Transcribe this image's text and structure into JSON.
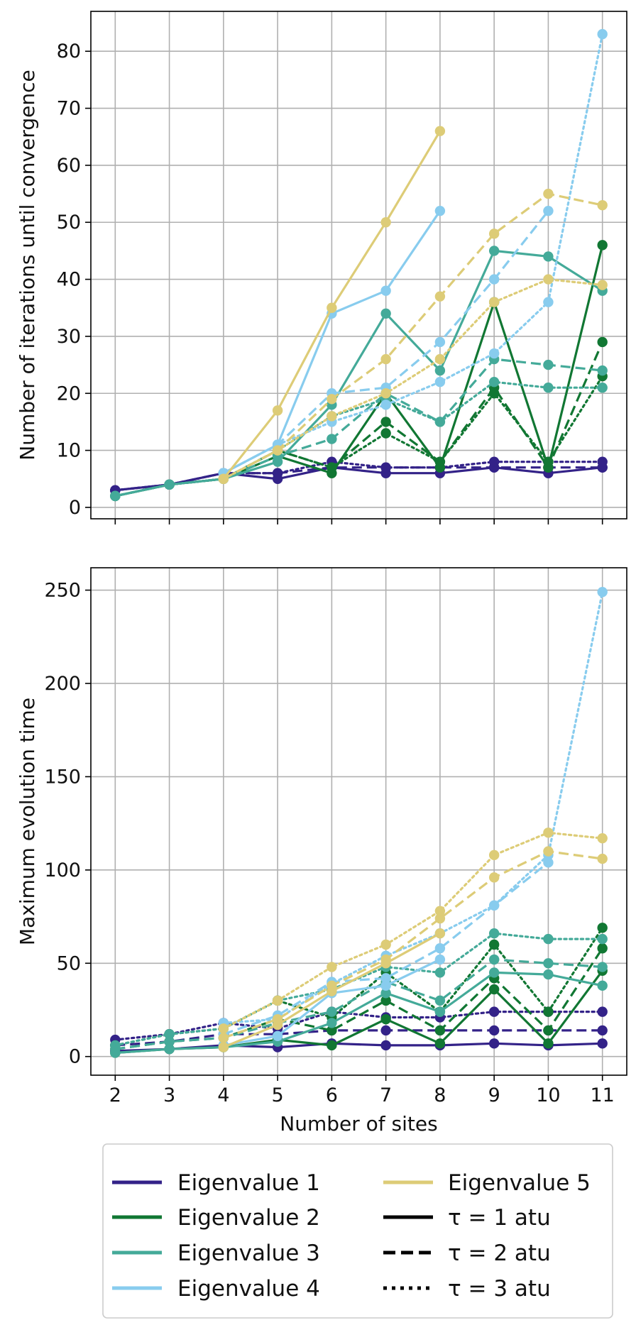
{
  "colors": {
    "Eigenvalue 1": "#332288",
    "Eigenvalue 2": "#117733",
    "Eigenvalue 3": "#44AA99",
    "Eigenvalue 4": "#88CCEE",
    "Eigenvalue 5": "#DDCC77"
  },
  "chart_data": [
    {
      "type": "line",
      "title": "",
      "xlabel": "",
      "ylabel": "Number of iterations until convergence",
      "x": [
        2,
        3,
        4,
        5,
        6,
        7,
        8,
        9,
        10,
        11
      ],
      "xlim": [
        1.55,
        11.45
      ],
      "ylim": [
        -2,
        87
      ],
      "yticks": [
        0,
        10,
        20,
        30,
        40,
        50,
        60,
        70,
        80
      ],
      "grid": true,
      "series": [
        {
          "name": "Eigenvalue 1",
          "tau": 1,
          "values": [
            3,
            4,
            6,
            5,
            7,
            6,
            6,
            7,
            6,
            7
          ]
        },
        {
          "name": "Eigenvalue 1",
          "tau": 2,
          "values": [
            3,
            4,
            6,
            6,
            7,
            7,
            7,
            7,
            7,
            7
          ]
        },
        {
          "name": "Eigenvalue 1",
          "tau": 3,
          "values": [
            3,
            4,
            6,
            6,
            8,
            7,
            7,
            8,
            8,
            8
          ]
        },
        {
          "name": "Eigenvalue 2",
          "tau": 1,
          "values": [
            2,
            4,
            5,
            9,
            6,
            20,
            7,
            36,
            7,
            46
          ]
        },
        {
          "name": "Eigenvalue 2",
          "tau": 2,
          "values": [
            2,
            4,
            5,
            10,
            7,
            15,
            8,
            21,
            7,
            29
          ]
        },
        {
          "name": "Eigenvalue 2",
          "tau": 3,
          "values": [
            2,
            4,
            5,
            10,
            7,
            13,
            8,
            20,
            8,
            23
          ]
        },
        {
          "name": "Eigenvalue 3",
          "tau": 1,
          "values": [
            2,
            4,
            5,
            8,
            18,
            34,
            24,
            45,
            44,
            38
          ]
        },
        {
          "name": "Eigenvalue 3",
          "tau": 2,
          "values": [
            2,
            4,
            5,
            9,
            12,
            20,
            15,
            26,
            25,
            24
          ]
        },
        {
          "name": "Eigenvalue 3",
          "tau": 3,
          "values": [
            2,
            4,
            5,
            10,
            16,
            19,
            15,
            22,
            21,
            21
          ]
        },
        {
          "name": "Eigenvalue 4",
          "tau": 1,
          "values": [
            null,
            null,
            6,
            11,
            34,
            38,
            52,
            null,
            null,
            null
          ]
        },
        {
          "name": "Eigenvalue 4",
          "tau": 2,
          "values": [
            null,
            null,
            6,
            11,
            20,
            21,
            29,
            40,
            52,
            null
          ]
        },
        {
          "name": "Eigenvalue 4",
          "tau": 3,
          "values": [
            null,
            null,
            6,
            11,
            15,
            18,
            22,
            27,
            36,
            83
          ]
        },
        {
          "name": "Eigenvalue 5",
          "tau": 1,
          "values": [
            null,
            null,
            5,
            17,
            35,
            50,
            66,
            null,
            null,
            null
          ]
        },
        {
          "name": "Eigenvalue 5",
          "tau": 2,
          "values": [
            null,
            null,
            5,
            10,
            19,
            26,
            37,
            48,
            55,
            53
          ]
        },
        {
          "name": "Eigenvalue 5",
          "tau": 3,
          "values": [
            null,
            null,
            5,
            10,
            16,
            20,
            26,
            36,
            40,
            39
          ]
        }
      ]
    },
    {
      "type": "line",
      "title": "",
      "xlabel": "Number of sites",
      "ylabel": "Maximum evolution time",
      "x": [
        2,
        3,
        4,
        5,
        6,
        7,
        8,
        9,
        10,
        11
      ],
      "xtick_labels": [
        "2",
        "3",
        "4",
        "5",
        "6",
        "7",
        "8",
        "9",
        "10",
        "11"
      ],
      "xlim": [
        1.55,
        11.45
      ],
      "ylim": [
        -10,
        262
      ],
      "yticks": [
        0,
        50,
        100,
        150,
        200,
        250
      ],
      "grid": true,
      "series": [
        {
          "name": "Eigenvalue 1",
          "tau": 1,
          "values": [
            3,
            4,
            6,
            5,
            7,
            6,
            6,
            7,
            6,
            7
          ]
        },
        {
          "name": "Eigenvalue 1",
          "tau": 2,
          "values": [
            6,
            8,
            12,
            12,
            14,
            14,
            14,
            14,
            14,
            14
          ]
        },
        {
          "name": "Eigenvalue 1",
          "tau": 3,
          "values": [
            9,
            12,
            18,
            15,
            24,
            21,
            21,
            24,
            24,
            24
          ]
        },
        {
          "name": "Eigenvalue 2",
          "tau": 1,
          "values": [
            2,
            4,
            5,
            9,
            6,
            20,
            7,
            36,
            7,
            46
          ]
        },
        {
          "name": "Eigenvalue 2",
          "tau": 2,
          "values": [
            4,
            8,
            10,
            20,
            14,
            30,
            14,
            42,
            14,
            58
          ]
        },
        {
          "name": "Eigenvalue 2",
          "tau": 3,
          "values": [
            6,
            12,
            15,
            30,
            21,
            45,
            24,
            60,
            24,
            69
          ]
        },
        {
          "name": "Eigenvalue 3",
          "tau": 1,
          "values": [
            2,
            4,
            5,
            8,
            18,
            34,
            24,
            45,
            44,
            38
          ]
        },
        {
          "name": "Eigenvalue 3",
          "tau": 2,
          "values": [
            4,
            8,
            10,
            18,
            24,
            40,
            30,
            52,
            50,
            48
          ]
        },
        {
          "name": "Eigenvalue 3",
          "tau": 3,
          "values": [
            6,
            12,
            15,
            30,
            36,
            48,
            45,
            66,
            63,
            63
          ]
        },
        {
          "name": "Eigenvalue 4",
          "tau": 1,
          "values": [
            null,
            null,
            6,
            11,
            34,
            38,
            52,
            null,
            null,
            null
          ]
        },
        {
          "name": "Eigenvalue 4",
          "tau": 2,
          "values": [
            null,
            null,
            12,
            22,
            40,
            42,
            58,
            81,
            104,
            null
          ]
        },
        {
          "name": "Eigenvalue 4",
          "tau": 3,
          "values": [
            null,
            null,
            18,
            20,
            39,
            54,
            66,
            81,
            108,
            249
          ]
        },
        {
          "name": "Eigenvalue 5",
          "tau": 1,
          "values": [
            null,
            null,
            5,
            17,
            35,
            50,
            66,
            null,
            null,
            null
          ]
        },
        {
          "name": "Eigenvalue 5",
          "tau": 2,
          "values": [
            null,
            null,
            10,
            20,
            38,
            52,
            74,
            96,
            110,
            106
          ]
        },
        {
          "name": "Eigenvalue 5",
          "tau": 3,
          "values": [
            null,
            null,
            15,
            30,
            48,
            60,
            78,
            108,
            120,
            117
          ]
        }
      ]
    }
  ],
  "legend": {
    "placement": "bottom",
    "entries": [
      {
        "label": "Eigenvalue 1",
        "kind": "color",
        "color": "#332288"
      },
      {
        "label": "Eigenvalue 2",
        "kind": "color",
        "color": "#117733"
      },
      {
        "label": "Eigenvalue 3",
        "kind": "color",
        "color": "#44AA99"
      },
      {
        "label": "Eigenvalue 4",
        "kind": "color",
        "color": "#88CCEE"
      },
      {
        "label": "Eigenvalue 5",
        "kind": "color",
        "color": "#DDCC77"
      },
      {
        "label": "τ = 1 atu",
        "kind": "style",
        "tau": 1
      },
      {
        "label": "τ = 2 atu",
        "kind": "style",
        "tau": 2
      },
      {
        "label": "τ = 3 atu",
        "kind": "style",
        "tau": 3
      }
    ]
  }
}
